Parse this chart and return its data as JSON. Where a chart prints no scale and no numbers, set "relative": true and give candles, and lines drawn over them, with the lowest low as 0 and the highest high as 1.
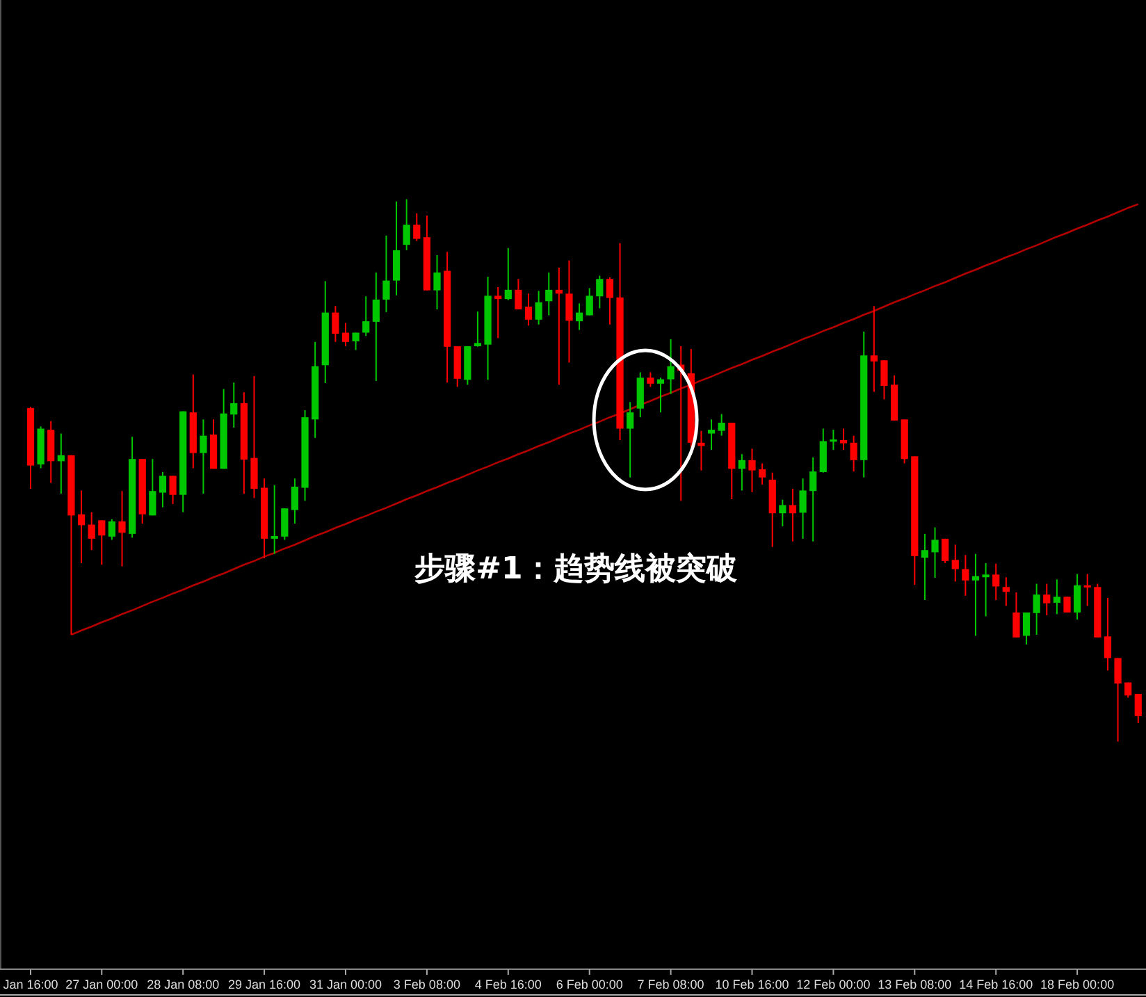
{
  "chart_data": {
    "type": "candlestick",
    "relative": true,
    "annotations": [
      "步骤#1：趋势线被突破"
    ],
    "categories": [
      "Jan 16:00",
      null,
      null,
      null,
      null,
      null,
      null,
      "27 Jan 00:00",
      null,
      null,
      null,
      null,
      null,
      null,
      null,
      "28 Jan 08:00",
      null,
      null,
      null,
      null,
      null,
      null,
      null,
      "29 Jan 16:00",
      null,
      null,
      null,
      null,
      null,
      null,
      null,
      "31 Jan 00:00",
      null,
      null,
      null,
      null,
      null,
      null,
      null,
      "3 Feb 08:00",
      null,
      null,
      null,
      null,
      null,
      null,
      null,
      "4 Feb 16:00",
      null,
      null,
      null,
      null,
      null,
      null,
      null,
      "6 Feb 00:00",
      null,
      null,
      null,
      null,
      null,
      null,
      null,
      "7 Feb 08:00",
      null,
      null,
      null,
      null,
      null,
      null,
      null,
      "10 Feb 16:00",
      null,
      null,
      null,
      null,
      null,
      null,
      null,
      "12 Feb 00:00",
      null,
      null,
      null,
      null,
      null,
      null,
      null,
      "13 Feb 08:00",
      null,
      null,
      null,
      null,
      null,
      null,
      null,
      "14 Feb 16:00",
      null,
      null,
      null,
      null,
      null,
      null,
      null,
      "18 Feb 00:00",
      null,
      null,
      null,
      null,
      null,
      null
    ],
    "ohlc": [
      [
        0.615,
        0.617,
        0.466,
        0.509
      ],
      [
        0.511,
        0.581,
        0.504,
        0.577
      ],
      [
        0.575,
        0.591,
        0.477,
        0.517
      ],
      [
        0.517,
        0.568,
        0.457,
        0.528
      ],
      [
        0.528,
        0.528,
        0.197,
        0.417
      ],
      [
        0.419,
        0.463,
        0.329,
        0.399
      ],
      [
        0.4,
        0.423,
        0.353,
        0.374
      ],
      [
        0.408,
        0.408,
        0.326,
        0.38
      ],
      [
        0.378,
        0.41,
        0.372,
        0.406
      ],
      [
        0.406,
        0.462,
        0.323,
        0.385
      ],
      [
        0.383,
        0.562,
        0.376,
        0.521
      ],
      [
        0.521,
        0.521,
        0.402,
        0.419
      ],
      [
        0.417,
        0.521,
        0.417,
        0.462
      ],
      [
        0.459,
        0.497,
        0.432,
        0.49
      ],
      [
        0.49,
        0.49,
        0.438,
        0.455
      ],
      [
        0.455,
        0.609,
        0.423,
        0.609
      ],
      [
        0.607,
        0.677,
        0.504,
        0.532
      ],
      [
        0.532,
        0.594,
        0.457,
        0.564
      ],
      [
        0.566,
        0.594,
        0.503,
        0.503
      ],
      [
        0.503,
        0.65,
        0.503,
        0.605
      ],
      [
        0.603,
        0.662,
        0.579,
        0.624
      ],
      [
        0.624,
        0.644,
        0.457,
        0.52
      ],
      [
        0.523,
        0.674,
        0.449,
        0.466
      ],
      [
        0.468,
        0.485,
        0.338,
        0.374
      ],
      [
        0.374,
        0.473,
        0.346,
        0.379
      ],
      [
        0.378,
        0.43,
        0.372,
        0.43
      ],
      [
        0.427,
        0.485,
        0.402,
        0.47
      ],
      [
        0.468,
        0.611,
        0.444,
        0.598
      ],
      [
        0.594,
        0.737,
        0.56,
        0.692
      ],
      [
        0.694,
        0.849,
        0.661,
        0.791
      ],
      [
        0.791,
        0.803,
        0.737,
        0.752
      ],
      [
        0.754,
        0.772,
        0.729,
        0.737
      ],
      [
        0.738,
        0.754,
        0.722,
        0.754
      ],
      [
        0.754,
        0.821,
        0.748,
        0.775
      ],
      [
        0.774,
        0.865,
        0.665,
        0.815
      ],
      [
        0.815,
        0.933,
        0.792,
        0.85
      ],
      [
        0.85,
        0.996,
        0.823,
        0.906
      ],
      [
        0.916,
        1.0,
        0.906,
        0.953
      ],
      [
        0.953,
        0.974,
        0.923,
        0.927
      ],
      [
        0.93,
        0.97,
        0.832,
        0.832
      ],
      [
        0.832,
        0.897,
        0.797,
        0.865
      ],
      [
        0.868,
        0.903,
        0.662,
        0.728
      ],
      [
        0.729,
        0.729,
        0.654,
        0.669
      ],
      [
        0.667,
        0.729,
        0.658,
        0.729
      ],
      [
        0.729,
        0.793,
        0.728,
        0.735
      ],
      [
        0.732,
        0.857,
        0.667,
        0.822
      ],
      [
        0.822,
        0.838,
        0.744,
        0.816
      ],
      [
        0.816,
        0.91,
        0.814,
        0.833
      ],
      [
        0.833,
        0.853,
        0.797,
        0.797
      ],
      [
        0.802,
        0.826,
        0.767,
        0.778
      ],
      [
        0.778,
        0.831,
        0.769,
        0.81
      ],
      [
        0.812,
        0.865,
        0.786,
        0.833
      ],
      [
        0.833,
        0.874,
        0.658,
        0.826
      ],
      [
        0.826,
        0.887,
        0.699,
        0.776
      ],
      [
        0.775,
        0.808,
        0.759,
        0.791
      ],
      [
        0.786,
        0.836,
        0.786,
        0.822
      ],
      [
        0.821,
        0.859,
        0.799,
        0.853
      ],
      [
        0.853,
        0.856,
        0.769,
        0.818
      ],
      [
        0.819,
        0.919,
        0.556,
        0.577
      ],
      [
        0.577,
        0.626,
        0.487,
        0.607
      ],
      [
        0.614,
        0.681,
        0.598,
        0.671
      ],
      [
        0.671,
        0.681,
        0.654,
        0.66
      ],
      [
        0.66,
        0.671,
        0.607,
        0.668
      ],
      [
        0.668,
        0.742,
        0.641,
        0.692
      ],
      [
        0.695,
        0.729,
        0.444,
        0.684
      ],
      [
        0.679,
        0.724,
        0.543,
        0.551
      ],
      [
        0.551,
        0.573,
        0.5,
        0.545
      ],
      [
        0.568,
        0.594,
        0.538,
        0.575
      ],
      [
        0.573,
        0.604,
        0.564,
        0.588
      ],
      [
        0.588,
        0.588,
        0.447,
        0.503
      ],
      [
        0.503,
        0.53,
        0.463,
        0.519
      ],
      [
        0.519,
        0.54,
        0.46,
        0.5
      ],
      [
        0.502,
        0.513,
        0.474,
        0.487
      ],
      [
        0.483,
        0.496,
        0.359,
        0.421
      ],
      [
        0.421,
        0.446,
        0.397,
        0.436
      ],
      [
        0.436,
        0.466,
        0.369,
        0.421
      ],
      [
        0.422,
        0.485,
        0.374,
        0.463
      ],
      [
        0.462,
        0.524,
        0.369,
        0.498
      ],
      [
        0.497,
        0.577,
        0.496,
        0.554
      ],
      [
        0.553,
        0.575,
        0.538,
        0.557
      ],
      [
        0.556,
        0.577,
        0.538,
        0.55
      ],
      [
        0.551,
        0.564,
        0.498,
        0.519
      ],
      [
        0.519,
        0.756,
        0.487,
        0.712
      ],
      [
        0.712,
        0.803,
        0.645,
        0.701
      ],
      [
        0.703,
        0.703,
        0.631,
        0.656
      ],
      [
        0.658,
        0.675,
        0.592,
        0.592
      ],
      [
        0.594,
        0.594,
        0.513,
        0.521
      ],
      [
        0.526,
        0.526,
        0.289,
        0.342
      ],
      [
        0.339,
        0.383,
        0.261,
        0.353
      ],
      [
        0.349,
        0.395,
        0.302,
        0.372
      ],
      [
        0.374,
        0.374,
        0.329,
        0.333
      ],
      [
        0.335,
        0.363,
        0.295,
        0.318
      ],
      [
        0.318,
        0.344,
        0.269,
        0.297
      ],
      [
        0.297,
        0.346,
        0.195,
        0.305
      ],
      [
        0.303,
        0.329,
        0.231,
        0.308
      ],
      [
        0.308,
        0.328,
        0.261,
        0.286
      ],
      [
        0.285,
        0.303,
        0.25,
        0.276
      ],
      [
        0.238,
        0.275,
        0.192,
        0.192
      ],
      [
        0.195,
        0.238,
        0.179,
        0.238
      ],
      [
        0.237,
        0.291,
        0.197,
        0.271
      ],
      [
        0.271,
        0.291,
        0.233,
        0.255
      ],
      [
        0.256,
        0.299,
        0.235,
        0.267
      ],
      [
        0.267,
        0.267,
        0.238,
        0.238
      ],
      [
        0.238,
        0.309,
        0.225,
        0.288
      ],
      [
        0.288,
        0.309,
        0.25,
        0.285
      ],
      [
        0.285,
        0.291,
        0.192,
        0.192
      ],
      [
        0.194,
        0.265,
        0.131,
        0.154
      ],
      [
        0.154,
        0.154,
        0.0,
        0.107
      ],
      [
        0.109,
        0.109,
        0.081,
        0.085
      ],
      [
        0.088,
        0.088,
        0.034,
        0.047
      ]
    ],
    "colors": [
      "#ff0000",
      "#00c800",
      "#ff0000",
      "#00c800",
      "#ff0000",
      "#ff0000",
      "#ff0000",
      "#ff0000",
      "#00c800",
      "#ff0000",
      "#00c800",
      "#ff0000",
      "#00c800",
      "#00c800",
      "#ff0000",
      "#00c800",
      "#ff0000",
      "#00c800",
      "#ff0000",
      "#00c800",
      "#00c800",
      "#ff0000",
      "#ff0000",
      "#ff0000",
      "#00c800",
      "#00c800",
      "#00c800",
      "#00c800",
      "#00c800",
      "#00c800",
      "#ff0000",
      "#ff0000",
      "#00c800",
      "#00c800",
      "#00c800",
      "#00c800",
      "#00c800",
      "#00c800",
      "#ff0000",
      "#ff0000",
      "#00c800",
      "#ff0000",
      "#ff0000",
      "#00c800",
      "#00c800",
      "#00c800",
      "#ff0000",
      "#00c800",
      "#ff0000",
      "#ff0000",
      "#00c800",
      "#00c800",
      "#ff0000",
      "#ff0000",
      "#00c800",
      "#00c800",
      "#00c800",
      "#ff0000",
      "#ff0000",
      "#00c800",
      "#00c800",
      "#ff0000",
      "#00c800",
      "#00c800",
      "#ff0000",
      "#ff0000",
      "#ff0000",
      "#00c800",
      "#00c800",
      "#ff0000",
      "#00c800",
      "#ff0000",
      "#ff0000",
      "#ff0000",
      "#00c800",
      "#ff0000",
      "#00c800",
      "#00c800",
      "#00c800",
      "#00c800",
      "#ff0000",
      "#ff0000",
      "#00c800",
      "#ff0000",
      "#ff0000",
      "#ff0000",
      "#ff0000",
      "#ff0000",
      "#00c800",
      "#00c800",
      "#ff0000",
      "#ff0000",
      "#ff0000",
      "#00c800",
      "#00c800",
      "#ff0000",
      "#ff0000",
      "#ff0000",
      "#00c800",
      "#00c800",
      "#ff0000",
      "#00c800",
      "#ff0000",
      "#00c800",
      "#ff0000",
      "#ff0000",
      "#ff0000",
      "#ff0000",
      "#ff0000",
      "#ff0000"
    ],
    "series": [
      {
        "type": "line",
        "color": "#b40000",
        "values": [
          null,
          null,
          null,
          null,
          0.197,
          0.205,
          0.212,
          0.22,
          0.227,
          0.235,
          0.242,
          0.25,
          0.258,
          0.265,
          0.273,
          0.28,
          0.288,
          0.295,
          0.303,
          0.31,
          0.318,
          0.326,
          0.333,
          0.341,
          0.348,
          0.356,
          0.363,
          0.371,
          0.379,
          0.386,
          0.394,
          0.401,
          0.409,
          0.416,
          0.424,
          0.431,
          0.439,
          0.447,
          0.454,
          0.462,
          0.469,
          0.477,
          0.484,
          0.492,
          0.5,
          0.507,
          0.515,
          0.522,
          0.53,
          0.537,
          0.545,
          0.552,
          0.56,
          0.568,
          0.575,
          0.583,
          0.59,
          0.598,
          0.605,
          0.613,
          0.621,
          0.628,
          0.636,
          0.643,
          0.651,
          0.658,
          0.666,
          0.673,
          0.681,
          0.689,
          0.696,
          0.704,
          0.711,
          0.719,
          0.726,
          0.734,
          0.742,
          0.749,
          0.757,
          0.764,
          0.772,
          0.779,
          0.787,
          0.794,
          0.802,
          0.81,
          0.817,
          0.825,
          0.832,
          0.84,
          0.847,
          0.855,
          0.863,
          0.87,
          0.878,
          0.885,
          0.893,
          0.9,
          0.908,
          0.915,
          0.923,
          0.931,
          0.938,
          0.946,
          0.953,
          0.961,
          0.968,
          0.976,
          0.984,
          0.991
        ]
      }
    ]
  }
}
